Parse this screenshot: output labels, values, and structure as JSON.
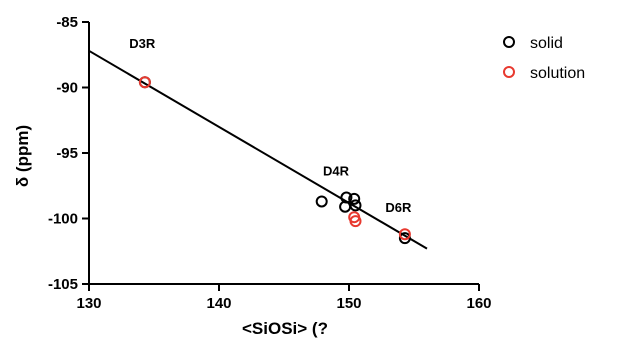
{
  "chart_data": {
    "type": "scatter",
    "title": "",
    "xlabel": "<SiOSi> (?",
    "ylabel": "δ (ppm)",
    "xlim": [
      130,
      160
    ],
    "ylim": [
      -105,
      -85
    ],
    "xticks": [
      130,
      140,
      150,
      160
    ],
    "yticks": [
      -85,
      -90,
      -95,
      -100,
      -105
    ],
    "xtick_labels": [
      "130",
      "140",
      "150",
      "160"
    ],
    "ytick_labels": [
      "-85",
      "-90",
      "-95",
      "-100",
      "-105"
    ],
    "grid": false,
    "legend_position": "top-right",
    "series": [
      {
        "name": "solid",
        "color": "#000000",
        "marker": "open-circle",
        "x": [
          134.3,
          147.9,
          149.8,
          150.4,
          149.7,
          150.5,
          154.3
        ],
        "y": [
          -89.6,
          -98.7,
          -98.4,
          -98.5,
          -99.1,
          -99.0,
          -101.5
        ]
      },
      {
        "name": "solution",
        "color": "#e8392f",
        "marker": "open-circle",
        "x": [
          134.3,
          150.4,
          150.5,
          154.3
        ],
        "y": [
          -89.6,
          -99.9,
          -100.2,
          -101.2
        ]
      }
    ],
    "fit_line": {
      "x": [
        130,
        156
      ],
      "y": [
        -87.2,
        -102.3
      ],
      "color": "#000000"
    },
    "annotations": [
      {
        "text": "D3R",
        "x": 134.1,
        "y": -87.0
      },
      {
        "text": "D4R",
        "x": 149.0,
        "y": -96.7
      },
      {
        "text": "D6R",
        "x": 153.8,
        "y": -99.5
      }
    ]
  }
}
